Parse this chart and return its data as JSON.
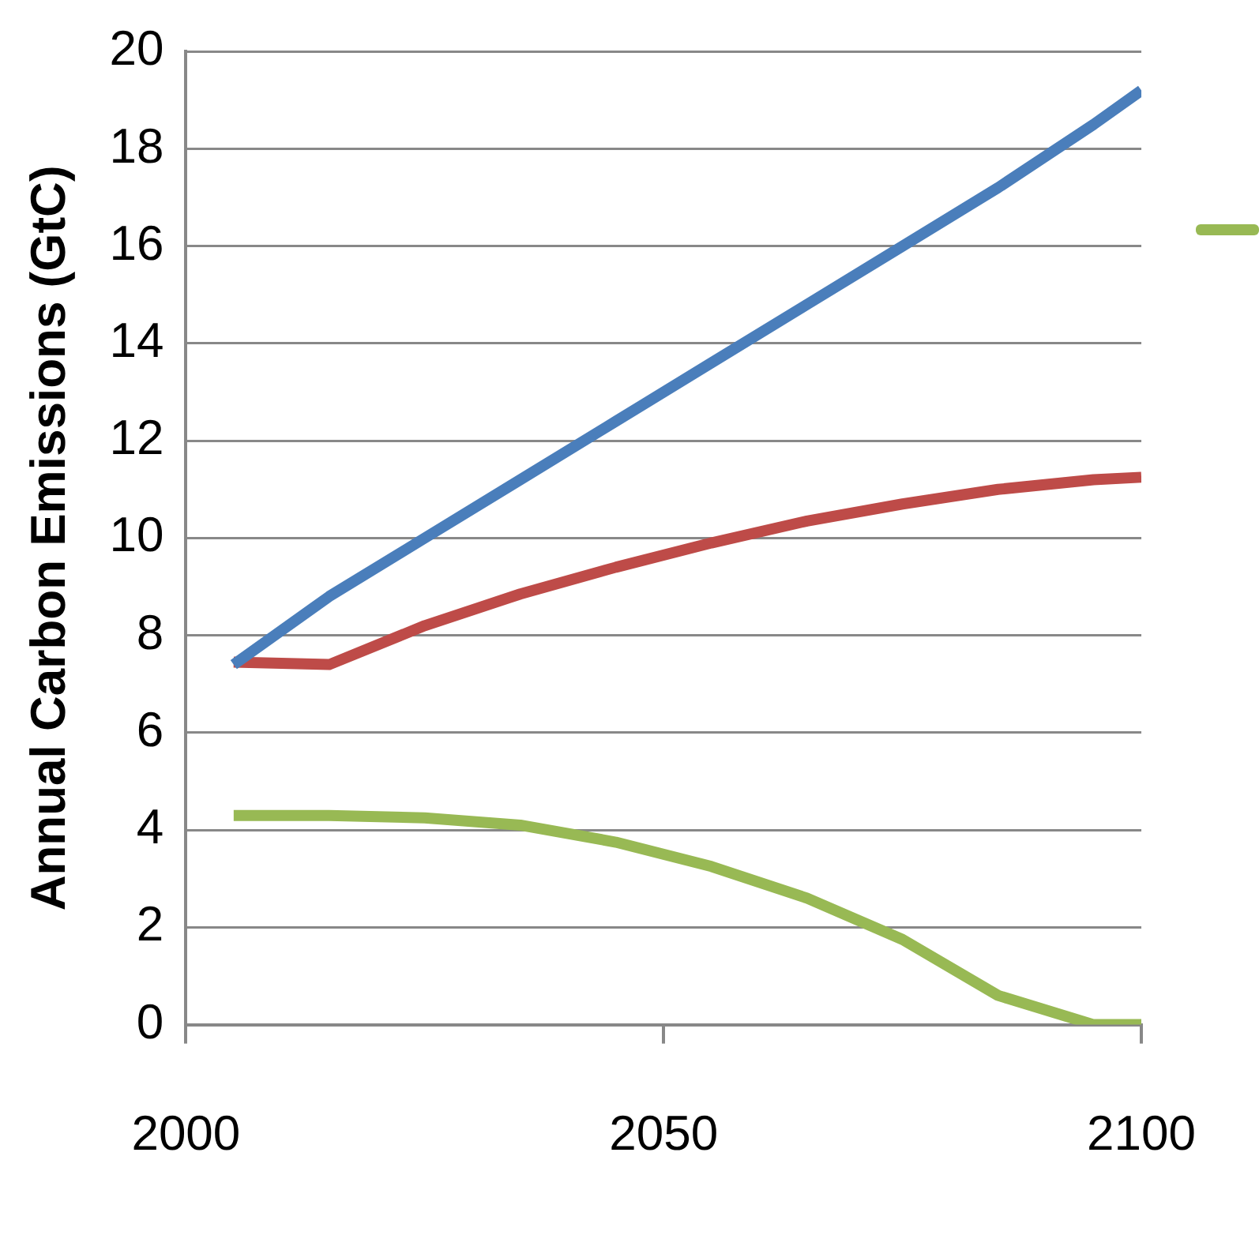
{
  "chart_data": {
    "type": "line",
    "ylabel": "Annual Carbon Emissions (GtC)",
    "x": [
      2005,
      2015,
      2025,
      2035,
      2045,
      2055,
      2065,
      2075,
      2085,
      2095,
      2100
    ],
    "series": [
      {
        "color": "#4a7ebb",
        "values": [
          7.4,
          8.8,
          10.0,
          11.2,
          12.4,
          13.6,
          14.8,
          16.0,
          17.2,
          18.5,
          19.2
        ]
      },
      {
        "color": "#be4b48",
        "values": [
          7.45,
          7.4,
          8.2,
          8.85,
          9.4,
          9.9,
          10.35,
          10.7,
          11.0,
          11.2,
          11.25
        ]
      },
      {
        "color": "#98b954",
        "values": [
          4.3,
          4.3,
          4.25,
          4.1,
          3.75,
          3.25,
          2.6,
          1.75,
          0.6,
          0,
          0
        ]
      }
    ],
    "xlim": [
      2000,
      2100
    ],
    "xticks": [
      2000,
      2050,
      2100
    ],
    "ylim": [
      0,
      20
    ],
    "yticks": [
      0,
      2,
      4,
      6,
      8,
      10,
      12,
      14,
      16,
      18,
      20
    ],
    "grid": "y",
    "marker": "none",
    "line_style": "solid"
  }
}
